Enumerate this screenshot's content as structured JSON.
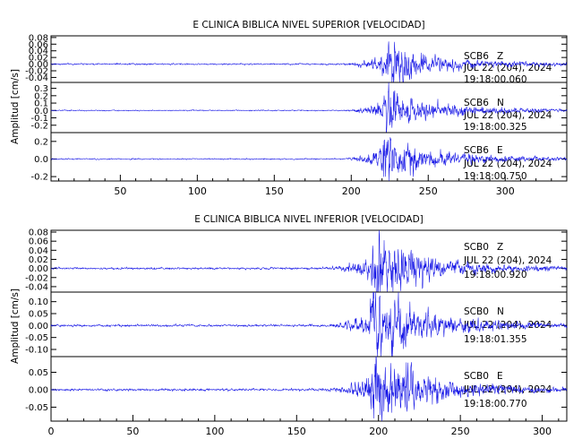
{
  "chart_data": [
    {
      "type": "line",
      "title": "E CLINICA BIBLICA NIVEL SUPERIOR [VELOCIDAD]",
      "ylabel": "Amplitud [cm/s]",
      "xlabel": "",
      "xlim": [
        5,
        340
      ],
      "x_ticks": [
        50,
        100,
        150,
        200,
        250,
        300
      ],
      "grid": false,
      "panels": [
        {
          "name": "SCB6 Z",
          "station": "SCB6",
          "component": "Z",
          "date": "JUL 22 (204), 2024",
          "time": "19:18:00.060",
          "ylim": [
            -0.055,
            0.085
          ],
          "y_ticks": [
            0.08,
            0.06,
            0.04,
            0.02,
            0.0,
            -0.02,
            -0.04
          ],
          "noise": 0.0012,
          "events": [
            {
              "start": 188,
              "peak": 222,
              "amp": 0.017,
              "decay": 60
            },
            {
              "start": 218,
              "peak": 226,
              "amp": 0.04,
              "decay": 10
            },
            {
              "start": 228,
              "peak": 233,
              "amp": 0.02,
              "decay": 25
            }
          ]
        },
        {
          "name": "SCB6 N",
          "station": "SCB6",
          "component": "N",
          "date": "JUL 22 (204), 2024",
          "time": "19:18:00.325",
          "ylim": [
            -0.3,
            0.38
          ],
          "y_ticks": [
            0.3,
            0.2,
            0.1,
            0.0,
            -0.1,
            -0.2
          ],
          "noise": 0.004,
          "events": [
            {
              "start": 190,
              "peak": 223,
              "amp": 0.09,
              "decay": 55
            },
            {
              "start": 217,
              "peak": 223,
              "amp": 0.2,
              "decay": 9
            },
            {
              "start": 230,
              "peak": 238,
              "amp": 0.06,
              "decay": 25
            }
          ]
        },
        {
          "name": "SCB6 E",
          "station": "SCB6",
          "component": "E",
          "date": "JUL 22 (204), 2024",
          "time": "19:18:00.750",
          "ylim": [
            -0.25,
            0.3
          ],
          "y_ticks": [
            0.2,
            0.0,
            -0.2
          ],
          "noise": 0.004,
          "events": [
            {
              "start": 190,
              "peak": 221,
              "amp": 0.08,
              "decay": 55
            },
            {
              "start": 216,
              "peak": 221,
              "amp": 0.19,
              "decay": 9
            },
            {
              "start": 226,
              "peak": 234,
              "amp": 0.09,
              "decay": 22
            }
          ]
        }
      ]
    },
    {
      "type": "line",
      "title": "E CLINICA BIBLICA NIVEL INFERIOR [VELOCIDAD]",
      "ylabel": "Amplitud [cm/s]",
      "xlabel": "",
      "xlim": [
        0,
        315
      ],
      "x_ticks": [
        0,
        50,
        100,
        150,
        200,
        250,
        300
      ],
      "grid": false,
      "panels": [
        {
          "name": "SCB0 Z",
          "station": "SCB0",
          "component": "Z",
          "date": "JUL 22 (204), 2024",
          "time": "19:18:00.920",
          "ylim": [
            -0.052,
            0.084
          ],
          "y_ticks": [
            0.08,
            0.06,
            0.04,
            0.02,
            0.0,
            -0.02,
            -0.04
          ],
          "noise": 0.0012,
          "events": [
            {
              "start": 160,
              "peak": 198,
              "amp": 0.017,
              "decay": 60
            },
            {
              "start": 192,
              "peak": 199,
              "amp": 0.045,
              "decay": 10
            },
            {
              "start": 205,
              "peak": 211,
              "amp": 0.025,
              "decay": 25
            }
          ]
        },
        {
          "name": "SCB0 N",
          "station": "SCB0",
          "component": "N",
          "date": "JUL 22 (204), 2024",
          "time": "19:18:01.355",
          "ylim": [
            -0.13,
            0.14
          ],
          "y_ticks": [
            0.1,
            0.05,
            0.0,
            -0.05,
            -0.1
          ],
          "noise": 0.0025,
          "events": [
            {
              "start": 160,
              "peak": 197,
              "amp": 0.035,
              "decay": 60
            },
            {
              "start": 190,
              "peak": 197,
              "amp": 0.085,
              "decay": 10
            },
            {
              "start": 201,
              "peak": 208,
              "amp": 0.05,
              "decay": 25
            }
          ]
        },
        {
          "name": "SCB0 E",
          "station": "SCB0",
          "component": "E",
          "date": "JUL 22 (204), 2024",
          "time": "19:18:00.770",
          "ylim": [
            -0.09,
            0.095
          ],
          "y_ticks": [
            0.05,
            0.0,
            -0.05
          ],
          "noise": 0.0018,
          "events": [
            {
              "start": 160,
              "peak": 198,
              "amp": 0.025,
              "decay": 60
            },
            {
              "start": 192,
              "peak": 198,
              "amp": 0.075,
              "decay": 10
            },
            {
              "start": 204,
              "peak": 210,
              "amp": 0.04,
              "decay": 25
            }
          ]
        }
      ]
    }
  ]
}
